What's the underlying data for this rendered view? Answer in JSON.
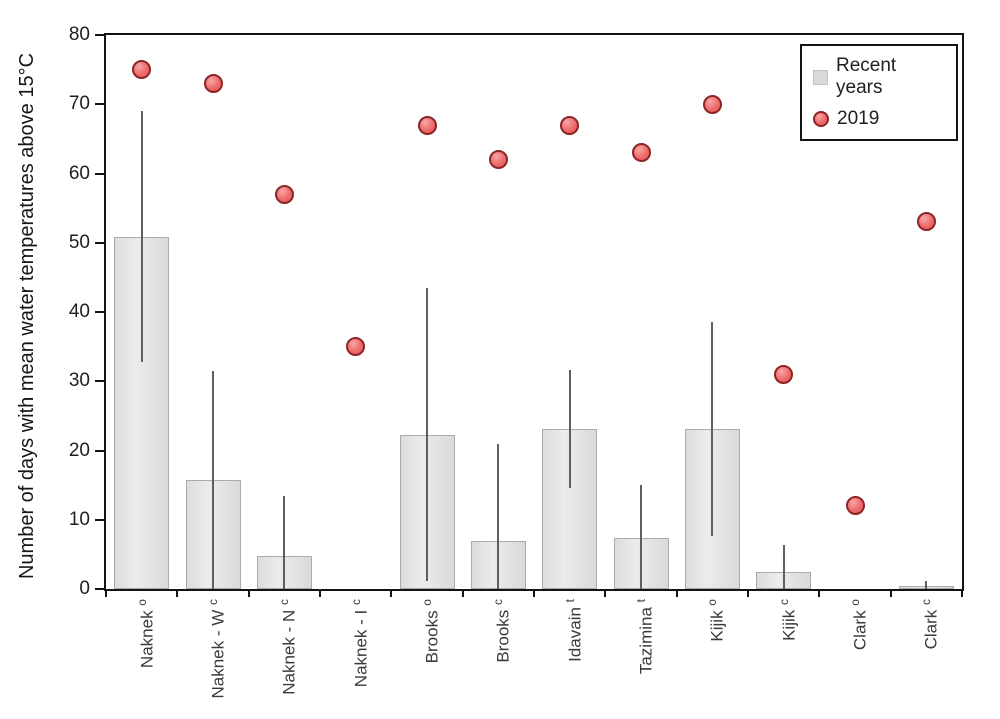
{
  "chart_data": {
    "type": "bar",
    "title": "",
    "xlabel": "",
    "ylabel": "Number of days with mean water temperatures above 15°C",
    "ylim": [
      0,
      80
    ],
    "yticks": [
      0,
      10,
      20,
      30,
      40,
      50,
      60,
      70,
      80
    ],
    "grid": false,
    "legend_position": "top-right-inside",
    "categories": [
      {
        "name": "Naknek",
        "sup": "o"
      },
      {
        "name": "Naknek - W",
        "sup": "c"
      },
      {
        "name": "Naknek - N",
        "sup": "c"
      },
      {
        "name": "Naknek - I",
        "sup": "c"
      },
      {
        "name": "Brooks",
        "sup": "o"
      },
      {
        "name": "Brooks",
        "sup": "c"
      },
      {
        "name": "Idavain",
        "sup": "t"
      },
      {
        "name": "Tazimina",
        "sup": "t"
      },
      {
        "name": "Kijik",
        "sup": "o"
      },
      {
        "name": "Kijik",
        "sup": "c"
      },
      {
        "name": "Clark",
        "sup": "o"
      },
      {
        "name": "Clark",
        "sup": "c"
      }
    ],
    "series": [
      {
        "name": "Recent years",
        "type": "bar",
        "values": [
          50.9,
          15.7,
          4.8,
          0,
          22.3,
          7.0,
          23.1,
          7.4,
          23.1,
          2.4,
          0,
          0.4
        ],
        "error_high": [
          69,
          31.5,
          13.5,
          null,
          43.5,
          21,
          31.6,
          15,
          38.5,
          6.3,
          null,
          1.2
        ],
        "error_low": [
          32.8,
          0,
          0,
          null,
          1.1,
          0,
          14.6,
          0,
          7.7,
          0,
          null,
          0
        ]
      },
      {
        "name": "2019",
        "type": "scatter",
        "values": [
          75,
          73,
          57,
          35,
          67,
          62,
          67,
          63,
          70,
          31,
          12,
          53
        ]
      }
    ],
    "colors": {
      "bar_fill": "#dcdcdc",
      "bar_border": "#ababab",
      "error_bar": "#5f5f5f",
      "dot_fill": "#ee6b6b",
      "dot_border": "#8c2527",
      "frame": "#141414",
      "axis_text": "#1f1f1f",
      "category_text": "#3a3a3a"
    }
  },
  "legend": {
    "items": [
      {
        "label": "Recent years",
        "marker": "square"
      },
      {
        "label": "2019",
        "marker": "circle"
      }
    ]
  }
}
